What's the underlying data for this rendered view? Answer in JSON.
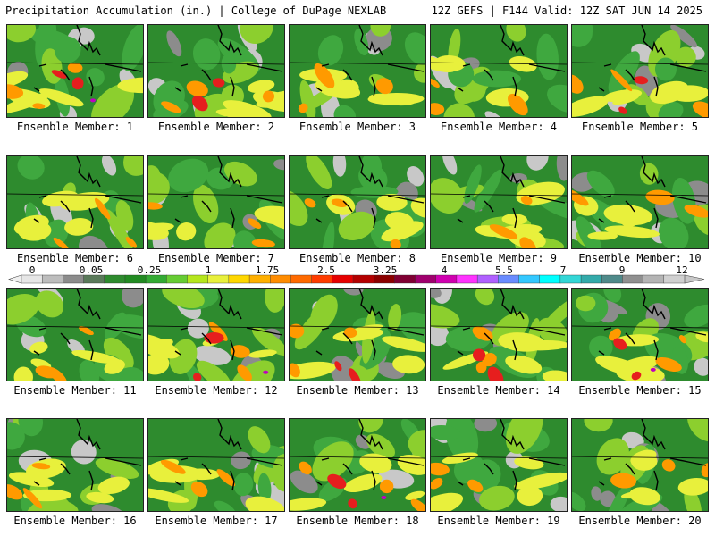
{
  "header": {
    "title": "Precipitation Accumulation (in.) | College of DuPage NEXLAB",
    "run_info": "12Z GEFS | F144 Valid: 12Z SAT JUN 14 2025"
  },
  "panels": [
    {
      "label": "Ensemble Member: 1"
    },
    {
      "label": "Ensemble Member: 2"
    },
    {
      "label": "Ensemble Member: 3"
    },
    {
      "label": "Ensemble Member: 4"
    },
    {
      "label": "Ensemble Member: 5"
    },
    {
      "label": "Ensemble Member: 6"
    },
    {
      "label": "Ensemble Member: 7"
    },
    {
      "label": "Ensemble Member: 8"
    },
    {
      "label": "Ensemble Member: 9"
    },
    {
      "label": "Ensemble Member: 10"
    },
    {
      "label": "Ensemble Member: 11"
    },
    {
      "label": "Ensemble Member: 12"
    },
    {
      "label": "Ensemble Member: 13"
    },
    {
      "label": "Ensemble Member: 14"
    },
    {
      "label": "Ensemble Member: 15"
    },
    {
      "label": "Ensemble Member: 16"
    },
    {
      "label": "Ensemble Member: 17"
    },
    {
      "label": "Ensemble Member: 18"
    },
    {
      "label": "Ensemble Member: 19"
    },
    {
      "label": "Ensemble Member: 20"
    }
  ],
  "colorbar": {
    "tick_labels": [
      "0",
      "0.05",
      "0.25",
      "1",
      "1.75",
      "2.5",
      "3.25",
      "4",
      "5.5",
      "7",
      "9",
      "12"
    ],
    "colors": [
      "#e6e6e6",
      "#bdbdbd",
      "#8c8c8c",
      "#5a7a5a",
      "#2e8b2e",
      "#228b22",
      "#33aa33",
      "#66cc33",
      "#b5e61d",
      "#e8f03c",
      "#ffd700",
      "#ffb000",
      "#ff8c00",
      "#ff6a00",
      "#ff3c00",
      "#e60000",
      "#b40000",
      "#8b0000",
      "#800033",
      "#a0006e",
      "#d000b0",
      "#ff33ff",
      "#b060ff",
      "#6a8cff",
      "#33c8ff",
      "#00ffff",
      "#33d6d6",
      "#33aaaa",
      "#4f8a8a",
      "#909090",
      "#b4b4b4",
      "#d0d0d0"
    ]
  },
  "map_colors": {
    "base_green": "#2e8b2e",
    "mid_green": "#3fa83f",
    "light_green": "#8ccf2e",
    "yellow": "#e8f03c",
    "orange": "#ff9a00",
    "red": "#e61e1e",
    "magenta": "#c000c0",
    "gray": "#8c8c8c",
    "light_gray": "#c8c8c8",
    "boundary": "#000000"
  }
}
